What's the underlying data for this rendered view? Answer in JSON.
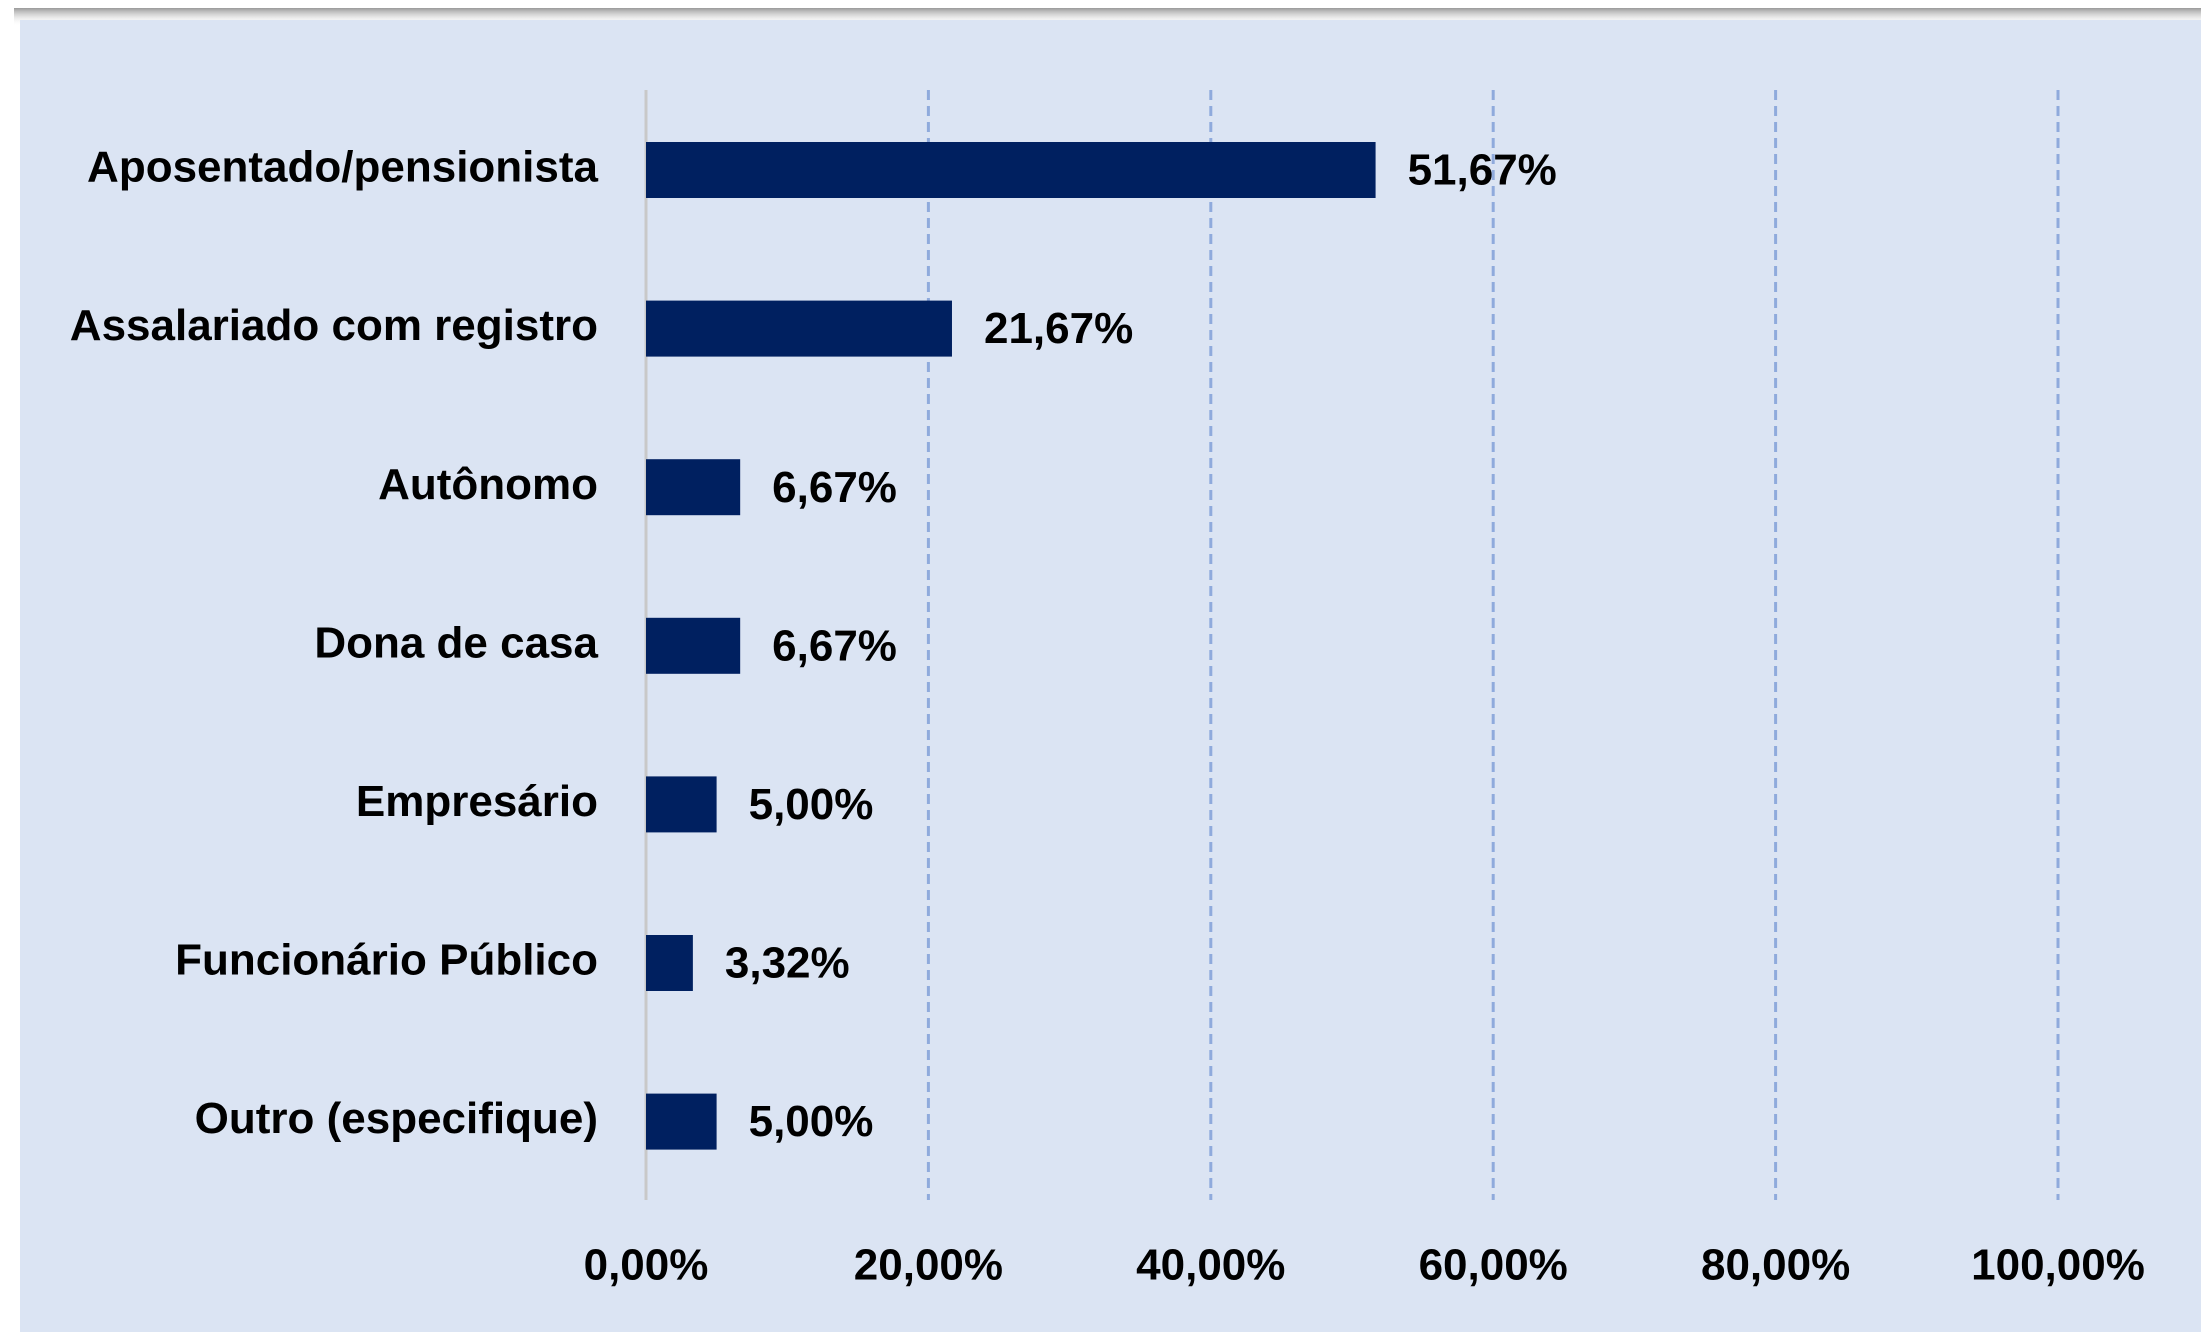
{
  "chart_data": {
    "type": "hbar",
    "categories": [
      "Aposentado/pensionista",
      "Assalariado com registro",
      "Autônomo",
      "Dona de casa",
      "Empresário",
      "Funcionário Público",
      "Outro (especifique)"
    ],
    "values": [
      51.67,
      21.67,
      6.67,
      6.67,
      5.0,
      3.32,
      5.0
    ],
    "value_labels": [
      "51,67%",
      "21,67%",
      "6,67%",
      "6,67%",
      "5,00%",
      "3,32%",
      "5,00%"
    ],
    "color": "#002060",
    "xlim": [
      0,
      100
    ],
    "xticks": [
      {
        "value": 0,
        "label": "0,00%"
      },
      {
        "value": 20,
        "label": "20,00%"
      },
      {
        "value": 40,
        "label": "40,00%"
      },
      {
        "value": 60,
        "label": "60,00%"
      },
      {
        "value": 80,
        "label": "80,00%"
      },
      {
        "value": 100,
        "label": "100,00%"
      }
    ],
    "grid": true
  }
}
